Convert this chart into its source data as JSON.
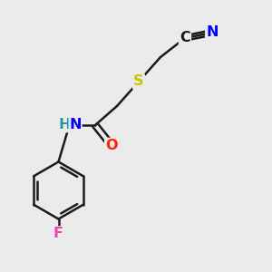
{
  "bg_color": "#ebebeb",
  "bond_color": "#1a1a1a",
  "bond_width": 1.8,
  "atom_colors": {
    "N": "#0000ff",
    "O": "#ff2200",
    "S": "#c8c800",
    "F": "#ee44aa",
    "C": "#1a1a1a",
    "H": "#2299aa"
  },
  "font_size": 11.5
}
